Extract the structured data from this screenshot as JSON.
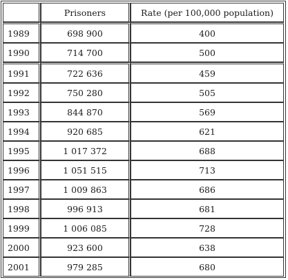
{
  "table": {
    "headers": [
      "",
      "Prisoners",
      "Rate (per 100,000 population)"
    ],
    "rows": [
      {
        "year": "1989",
        "prisoners": "698 900",
        "rate": "400"
      },
      {
        "year": "1990",
        "prisoners": "714 700",
        "rate": "500"
      },
      {
        "year": "1991",
        "prisoners": "722 636",
        "rate": "459"
      },
      {
        "year": "1992",
        "prisoners": "750 280",
        "rate": "505"
      },
      {
        "year": "1993",
        "prisoners": "844 870",
        "rate": "569"
      },
      {
        "year": "1994",
        "prisoners": "920 685",
        "rate": "621"
      },
      {
        "year": "1995",
        "prisoners": "1 017 372",
        "rate": "688"
      },
      {
        "year": "1996",
        "prisoners": "1 051 515",
        "rate": "713"
      },
      {
        "year": "1997",
        "prisoners": "1 009 863",
        "rate": "686"
      },
      {
        "year": "1998",
        "prisoners": "996 913",
        "rate": "681"
      },
      {
        "year": "1999",
        "prisoners": "1 006 085",
        "rate": "728"
      },
      {
        "year": "2000",
        "prisoners": "923 600",
        "rate": "638"
      },
      {
        "year": "2001",
        "prisoners": "979 285",
        "rate": "680"
      }
    ]
  }
}
